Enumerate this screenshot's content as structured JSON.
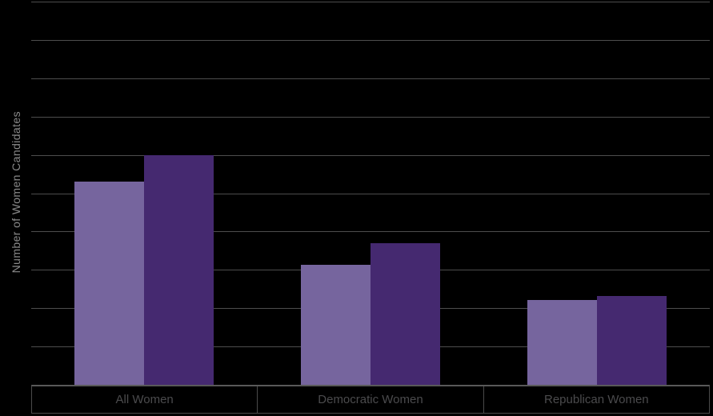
{
  "chart_data": {
    "type": "bar",
    "title": "",
    "xlabel": "",
    "ylabel": "Number of Women Candidates",
    "categories": [
      "All Women",
      "Democratic Women",
      "Republican Women"
    ],
    "series": [
      {
        "name": "light purple bars",
        "color": "#76659E",
        "values": [
          265,
          157,
          111
        ]
      },
      {
        "name": "dark purple bars",
        "color": "#452970",
        "values": [
          300,
          185,
          116
        ]
      }
    ],
    "ylim": [
      0,
      500
    ],
    "gridline_interval": 50,
    "grid": "on",
    "y_tick_labels": "none",
    "legend_position": "none",
    "background": "#000000"
  },
  "colors": {
    "background": "#000000",
    "gridline": "#4d4d4d",
    "light_purple": "#76659E",
    "dark_purple": "#452970",
    "axis_box_border": "#4a4a4a",
    "axis_box_top_border": "#595959",
    "category_label_text": "#4b4b4d",
    "ylabel_text": "#8a8a8a"
  }
}
